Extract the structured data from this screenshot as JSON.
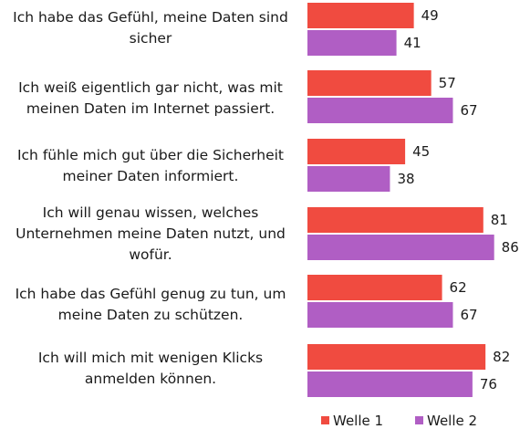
{
  "colors": {
    "welle1": "#f04b40",
    "welle2": "#b05ec4"
  },
  "chart_data": {
    "type": "bar",
    "orientation": "horizontal",
    "categories": [
      "Ich habe das Gefühl, meine Daten sind sicher",
      "Ich weiß eigentlich gar nicht, was mit meinen Daten im Internet passiert.",
      "Ich fühle mich gut über die Sicherheit meiner Daten informiert.",
      "Ich will genau wissen, welches Unternehmen meine Daten nutzt, und wofür.",
      "Ich habe das Gefühl genug zu tun, um meine Daten zu schützen.",
      "Ich will mich mit wenigen Klicks anmelden können."
    ],
    "series": [
      {
        "name": "Welle 1",
        "values": [
          49,
          57,
          45,
          81,
          62,
          82
        ]
      },
      {
        "name": "Welle 2",
        "values": [
          41,
          67,
          38,
          86,
          67,
          76
        ]
      }
    ],
    "data_labels": true,
    "legend_position": "bottom-right",
    "grid": false
  }
}
